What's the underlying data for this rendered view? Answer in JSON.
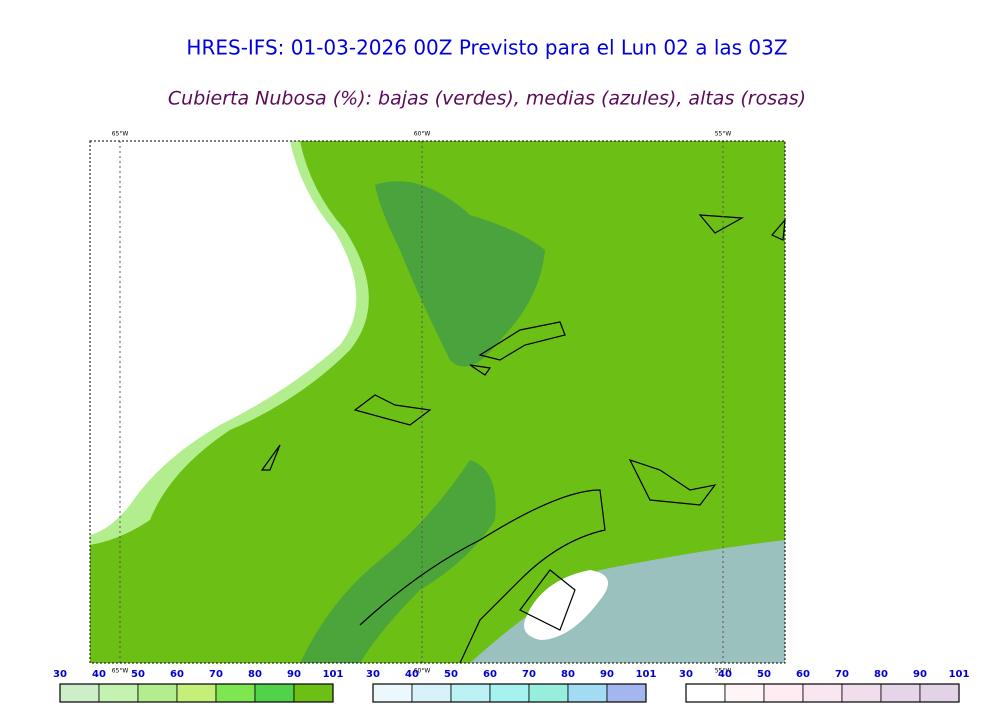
{
  "header": {
    "title": "HRES-IFS: 01-03-2026 00Z Previsto para el Lun 02 a las 03Z",
    "subtitle": "Cubierta Nubosa (%): bajas (verdes), medias (azules), altas (rosas)"
  },
  "map": {
    "top_labels": [
      "65°W",
      "60°W",
      "55°W"
    ],
    "bottom_labels": [
      "65°W",
      "60°W",
      "55°W"
    ]
  },
  "colorbars": [
    {
      "ticks": [
        "30",
        "40",
        "50",
        "60",
        "70",
        "80",
        "90",
        "101"
      ],
      "colors": [
        "#cdeec8",
        "#c4f2b0",
        "#b2ee8e",
        "#c4f07a",
        "#7ee650",
        "#52d24a",
        "#6cbf14"
      ]
    },
    {
      "ticks": [
        "30",
        "40",
        "50",
        "60",
        "70",
        "80",
        "90",
        "101"
      ],
      "colors": [
        "#ecf8fc",
        "#d8f2fa",
        "#bcf2f6",
        "#a6f2f0",
        "#98eedc",
        "#a2dcf2",
        "#a4b6f0"
      ]
    },
    {
      "ticks": [
        "30",
        "40",
        "50",
        "60",
        "70",
        "80",
        "90",
        "101"
      ],
      "colors": [
        "#ffffff",
        "#fff4f6",
        "#ffecf2",
        "#f8e6f0",
        "#f0deec",
        "#e6d4e8",
        "#e2d4e6"
      ]
    }
  ]
}
